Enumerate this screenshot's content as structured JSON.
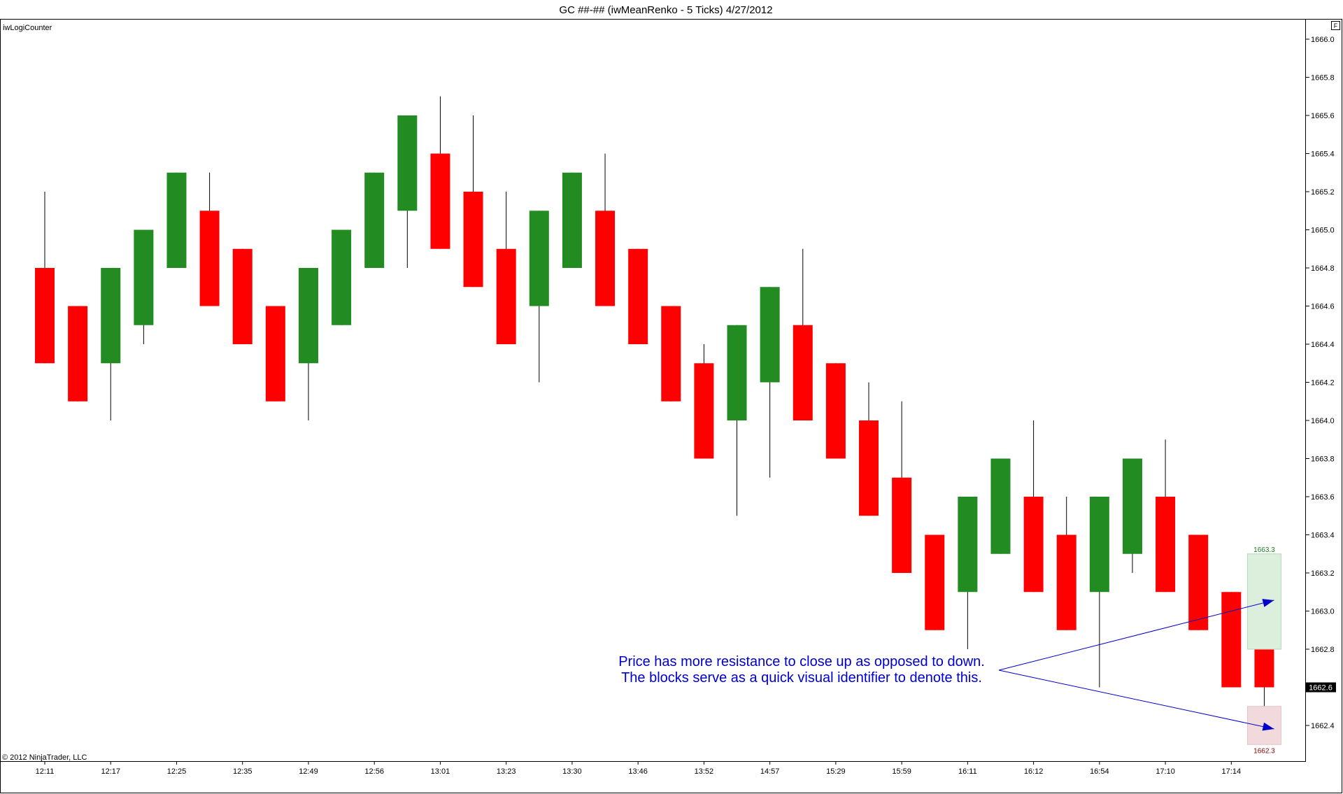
{
  "window": {
    "title": "GC ##-## (iwMeanRenko - 5 Ticks)  4/27/2012",
    "indicator_label": "iwLogiCounter",
    "copyright": "© 2012 NinjaTrader, LLC",
    "corner_button": "F"
  },
  "chart_data": {
    "type": "candlestick",
    "title": "GC ##-## (iwMeanRenko - 5 Ticks)  4/27/2012",
    "ylim": [
      1662.2,
      1666.0
    ],
    "y_ticks": [
      "1666.0",
      "1665.8",
      "1665.6",
      "1665.4",
      "1665.2",
      "1665.0",
      "1664.8",
      "1664.6",
      "1664.4",
      "1664.2",
      "1664.0",
      "1663.8",
      "1663.6",
      "1663.4",
      "1663.2",
      "1663.0",
      "1662.8",
      "1662.4"
    ],
    "x_ticks": [
      {
        "label": "12:11",
        "bar": 0
      },
      {
        "label": "12:17",
        "bar": 2
      },
      {
        "label": "12:25",
        "bar": 4
      },
      {
        "label": "12:35",
        "bar": 6
      },
      {
        "label": "12:49",
        "bar": 8
      },
      {
        "label": "12:56",
        "bar": 10
      },
      {
        "label": "13:01",
        "bar": 12
      },
      {
        "label": "13:23",
        "bar": 14
      },
      {
        "label": "13:30",
        "bar": 16
      },
      {
        "label": "13:46",
        "bar": 18
      },
      {
        "label": "13:52",
        "bar": 20
      },
      {
        "label": "14:57",
        "bar": 22
      },
      {
        "label": "15:29",
        "bar": 24
      },
      {
        "label": "15:59",
        "bar": 26
      },
      {
        "label": "16:11",
        "bar": 28
      },
      {
        "label": "16:12",
        "bar": 30
      },
      {
        "label": "16:54",
        "bar": 32
      },
      {
        "label": "17:10",
        "bar": 34
      },
      {
        "label": "17:14",
        "bar": 36
      }
    ],
    "up_color": "#228b22",
    "down_color": "#ff0000",
    "bars": [
      {
        "o": 1664.8,
        "c": 1664.3,
        "h": 1665.2,
        "l": 1664.3
      },
      {
        "o": 1664.6,
        "c": 1664.1,
        "h": 1664.6,
        "l": 1664.1
      },
      {
        "o": 1664.3,
        "c": 1664.8,
        "h": 1664.8,
        "l": 1664.0
      },
      {
        "o": 1664.5,
        "c": 1665.0,
        "h": 1665.0,
        "l": 1664.4
      },
      {
        "o": 1664.8,
        "c": 1665.3,
        "h": 1665.3,
        "l": 1664.8
      },
      {
        "o": 1665.1,
        "c": 1664.6,
        "h": 1665.3,
        "l": 1664.6
      },
      {
        "o": 1664.9,
        "c": 1664.4,
        "h": 1664.9,
        "l": 1664.4
      },
      {
        "o": 1664.6,
        "c": 1664.1,
        "h": 1664.6,
        "l": 1664.1
      },
      {
        "o": 1664.3,
        "c": 1664.8,
        "h": 1664.8,
        "l": 1664.0
      },
      {
        "o": 1664.5,
        "c": 1665.0,
        "h": 1665.0,
        "l": 1664.5
      },
      {
        "o": 1664.8,
        "c": 1665.3,
        "h": 1665.3,
        "l": 1664.8
      },
      {
        "o": 1665.1,
        "c": 1665.6,
        "h": 1665.6,
        "l": 1664.8
      },
      {
        "o": 1665.4,
        "c": 1664.9,
        "h": 1665.7,
        "l": 1664.9
      },
      {
        "o": 1665.2,
        "c": 1664.7,
        "h": 1665.6,
        "l": 1664.7
      },
      {
        "o": 1664.9,
        "c": 1664.4,
        "h": 1665.2,
        "l": 1664.4
      },
      {
        "o": 1664.6,
        "c": 1665.1,
        "h": 1665.1,
        "l": 1664.2
      },
      {
        "o": 1664.8,
        "c": 1665.3,
        "h": 1665.3,
        "l": 1664.8
      },
      {
        "o": 1665.1,
        "c": 1664.6,
        "h": 1665.4,
        "l": 1664.6
      },
      {
        "o": 1664.9,
        "c": 1664.4,
        "h": 1664.9,
        "l": 1664.4
      },
      {
        "o": 1664.6,
        "c": 1664.1,
        "h": 1664.6,
        "l": 1664.1
      },
      {
        "o": 1664.3,
        "c": 1663.8,
        "h": 1664.4,
        "l": 1663.8
      },
      {
        "o": 1664.0,
        "c": 1664.5,
        "h": 1664.5,
        "l": 1663.5
      },
      {
        "o": 1664.2,
        "c": 1664.7,
        "h": 1664.7,
        "l": 1663.7
      },
      {
        "o": 1664.5,
        "c": 1664.0,
        "h": 1664.9,
        "l": 1664.0
      },
      {
        "o": 1664.3,
        "c": 1663.8,
        "h": 1664.3,
        "l": 1663.8
      },
      {
        "o": 1664.0,
        "c": 1663.5,
        "h": 1664.2,
        "l": 1663.5
      },
      {
        "o": 1663.7,
        "c": 1663.2,
        "h": 1664.1,
        "l": 1663.2
      },
      {
        "o": 1663.4,
        "c": 1662.9,
        "h": 1663.4,
        "l": 1662.9
      },
      {
        "o": 1663.1,
        "c": 1663.6,
        "h": 1663.6,
        "l": 1662.8
      },
      {
        "o": 1663.3,
        "c": 1663.8,
        "h": 1663.8,
        "l": 1663.3
      },
      {
        "o": 1663.6,
        "c": 1663.1,
        "h": 1664.0,
        "l": 1663.1
      },
      {
        "o": 1663.4,
        "c": 1662.9,
        "h": 1663.6,
        "l": 1662.9
      },
      {
        "o": 1663.1,
        "c": 1663.6,
        "h": 1663.6,
        "l": 1662.6
      },
      {
        "o": 1663.3,
        "c": 1663.8,
        "h": 1663.8,
        "l": 1663.2
      },
      {
        "o": 1663.6,
        "c": 1663.1,
        "h": 1663.9,
        "l": 1663.1
      },
      {
        "o": 1663.4,
        "c": 1662.9,
        "h": 1663.4,
        "l": 1662.9
      },
      {
        "o": 1663.1,
        "c": 1662.6,
        "h": 1663.1,
        "l": 1662.6
      },
      {
        "o": 1662.8,
        "c": 1662.6,
        "h": 1662.8,
        "l": 1662.5
      }
    ],
    "upper_block": {
      "from": 1662.8,
      "to": 1663.3,
      "label": "1663.3",
      "color": "#dcefdc",
      "text_color": "#1f7a1f"
    },
    "lower_block": {
      "from": 1662.3,
      "to": 1662.5,
      "label": "1662.3",
      "color": "#f2dadc",
      "text_color": "#8b0000"
    },
    "current_price": "1662.6",
    "annotation": {
      "line1": "Price has more resistance to close up as opposed to down.",
      "line2": "The blocks serve as a quick visual identifier to denote this.",
      "color": "#0000cc"
    }
  }
}
